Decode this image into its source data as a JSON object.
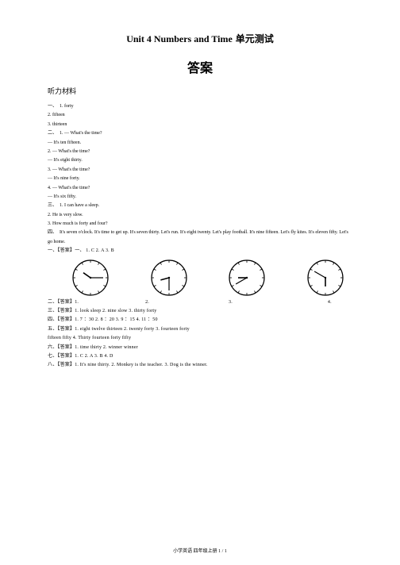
{
  "title_en": "Unit 4 Numbers and Time",
  "title_cn": "  单元测试",
  "answers_heading": "答案",
  "listening_heading": "听力材料",
  "sec1_label": "一、",
  "sec1_items": [
    "1. forty",
    "2. fifteen",
    "3. thirteen"
  ],
  "sec2_label": "二、",
  "sec2_items": [
    "1. — What's the time?",
    "— It's ten fifteen.",
    "2. — What's the time?",
    "— It's eight thirty.",
    "3. — What's the time?",
    "— It's nine forty.",
    "4. — What's the time?",
    "— It's six fifty."
  ],
  "sec3_label": "三、",
  "sec3_items": [
    "1. I can have a sleep.",
    "2. He is very slow.",
    "3. How much is forty and four?"
  ],
  "sec4_label": "四、",
  "sec4_text": "It's seven o'clock. It's time to get up. It's seven thirty. Let's run. It's eight twenty. Let's play football. It's nine fifteen. Let's fly kites. It's eleven fifty. Let's go home.",
  "ans1_label": "一、【答案】",
  "ans1_text": "一、  1. C      2. A      3. B",
  "ans2_label": "二、【答案】",
  "ans2_items": [
    "1.",
    "2.",
    "3.",
    "4."
  ],
  "clocks": [
    {
      "hour_angle": -55,
      "minute_angle": 90
    },
    {
      "hour_angle": -105,
      "minute_angle": 180
    },
    {
      "hour_angle": -90,
      "minute_angle": -120
    },
    {
      "hour_angle": 180,
      "minute_angle": -60
    }
  ],
  "ans3_label": "三、【答案】",
  "ans3_text_parts": [
    "1. ",
    "look",
    "      sleep      2. ",
    "nine",
    "      slow      3. ",
    "thirty",
    "      forty"
  ],
  "ans4_label": "四、【答案】",
  "ans4_text": "1. 7 ：30           2. 8 ：20         3. 9 ：15         4. 11 ：50",
  "ans5_label": "五、【答案】",
  "ans5_line1": "1.  eight      twelve      thirteen       2.  twenty       forty        3.  fourteen       forty",
  "ans5_line2": "fifteen      fifty       4. Thirty       fourteen       forty       fifty",
  "ans6_label": "六、【答案】",
  "ans6_text": "1. time      thirty        2. winner      winner",
  "ans7_label": "七、【答案】",
  "ans7_text": "1. C      2. A      3. B      4. D",
  "ans8_label": "八、【答案】",
  "ans8_text": "1. It's nine thirty.       2. Monkey is the teacher.       3. Dog is the winner.",
  "footer": "小学英语  四年级上册   1 / 1",
  "clock_style": {
    "radius": 22,
    "tick_len": 3,
    "minute_len": 16,
    "hour_len": 11,
    "stroke": "#000000",
    "stroke_width": 1.2,
    "tick_width": 0.8
  }
}
